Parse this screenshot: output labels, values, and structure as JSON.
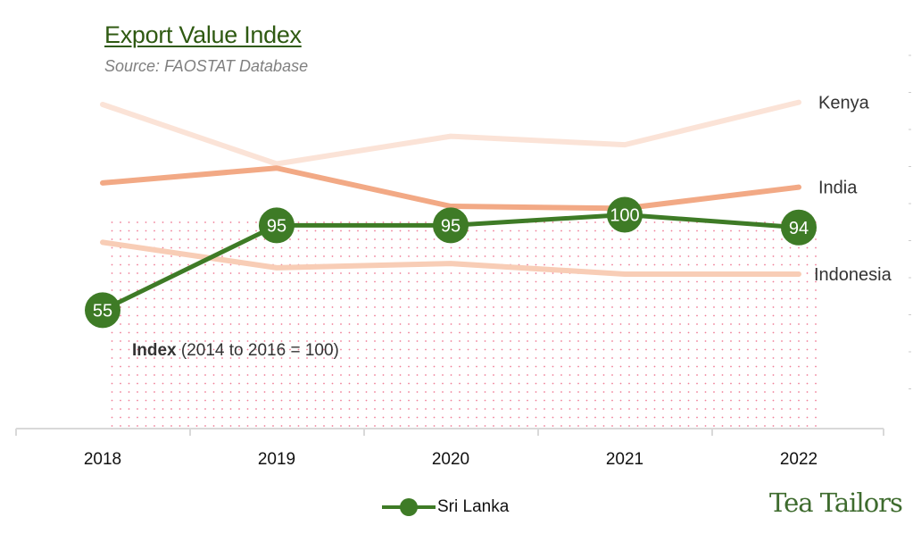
{
  "chart_data": {
    "type": "line",
    "title": "Export Value Index",
    "subtitle": "Source: FAOSTAT Database",
    "xlabel": "",
    "ylabel": "Index (2014 to 2016 = 100)",
    "categories": [
      "2018",
      "2019",
      "2020",
      "2021",
      "2022"
    ],
    "ylim": [
      0,
      160
    ],
    "grid": false,
    "series": [
      {
        "name": "Kenya",
        "values": [
          152,
          124,
          137,
          133,
          153
        ],
        "color": "#fbe3d7",
        "highlight": false
      },
      {
        "name": "India",
        "values": [
          115,
          122,
          104,
          103,
          113
        ],
        "color": "#f2a985",
        "highlight": false
      },
      {
        "name": "Indonesia",
        "values": [
          87,
          75,
          77,
          72,
          72
        ],
        "color": "#f8cdb6",
        "highlight": false
      },
      {
        "name": "Sri Lanka",
        "values": [
          55,
          95,
          95,
          100,
          94
        ],
        "color": "#3e7b26",
        "highlight": true,
        "data_labels": [
          "55",
          "95",
          "95",
          "100",
          "94"
        ]
      }
    ],
    "annotation": {
      "bold": "Index",
      "rest": " (2014 to 2016 = 100)"
    },
    "shaded_region": {
      "y_max": 100,
      "pattern": "pink dots"
    },
    "legend": {
      "entries": [
        "Sri Lanka"
      ],
      "placement": "bottom"
    }
  },
  "brand": "Tea Tailors"
}
